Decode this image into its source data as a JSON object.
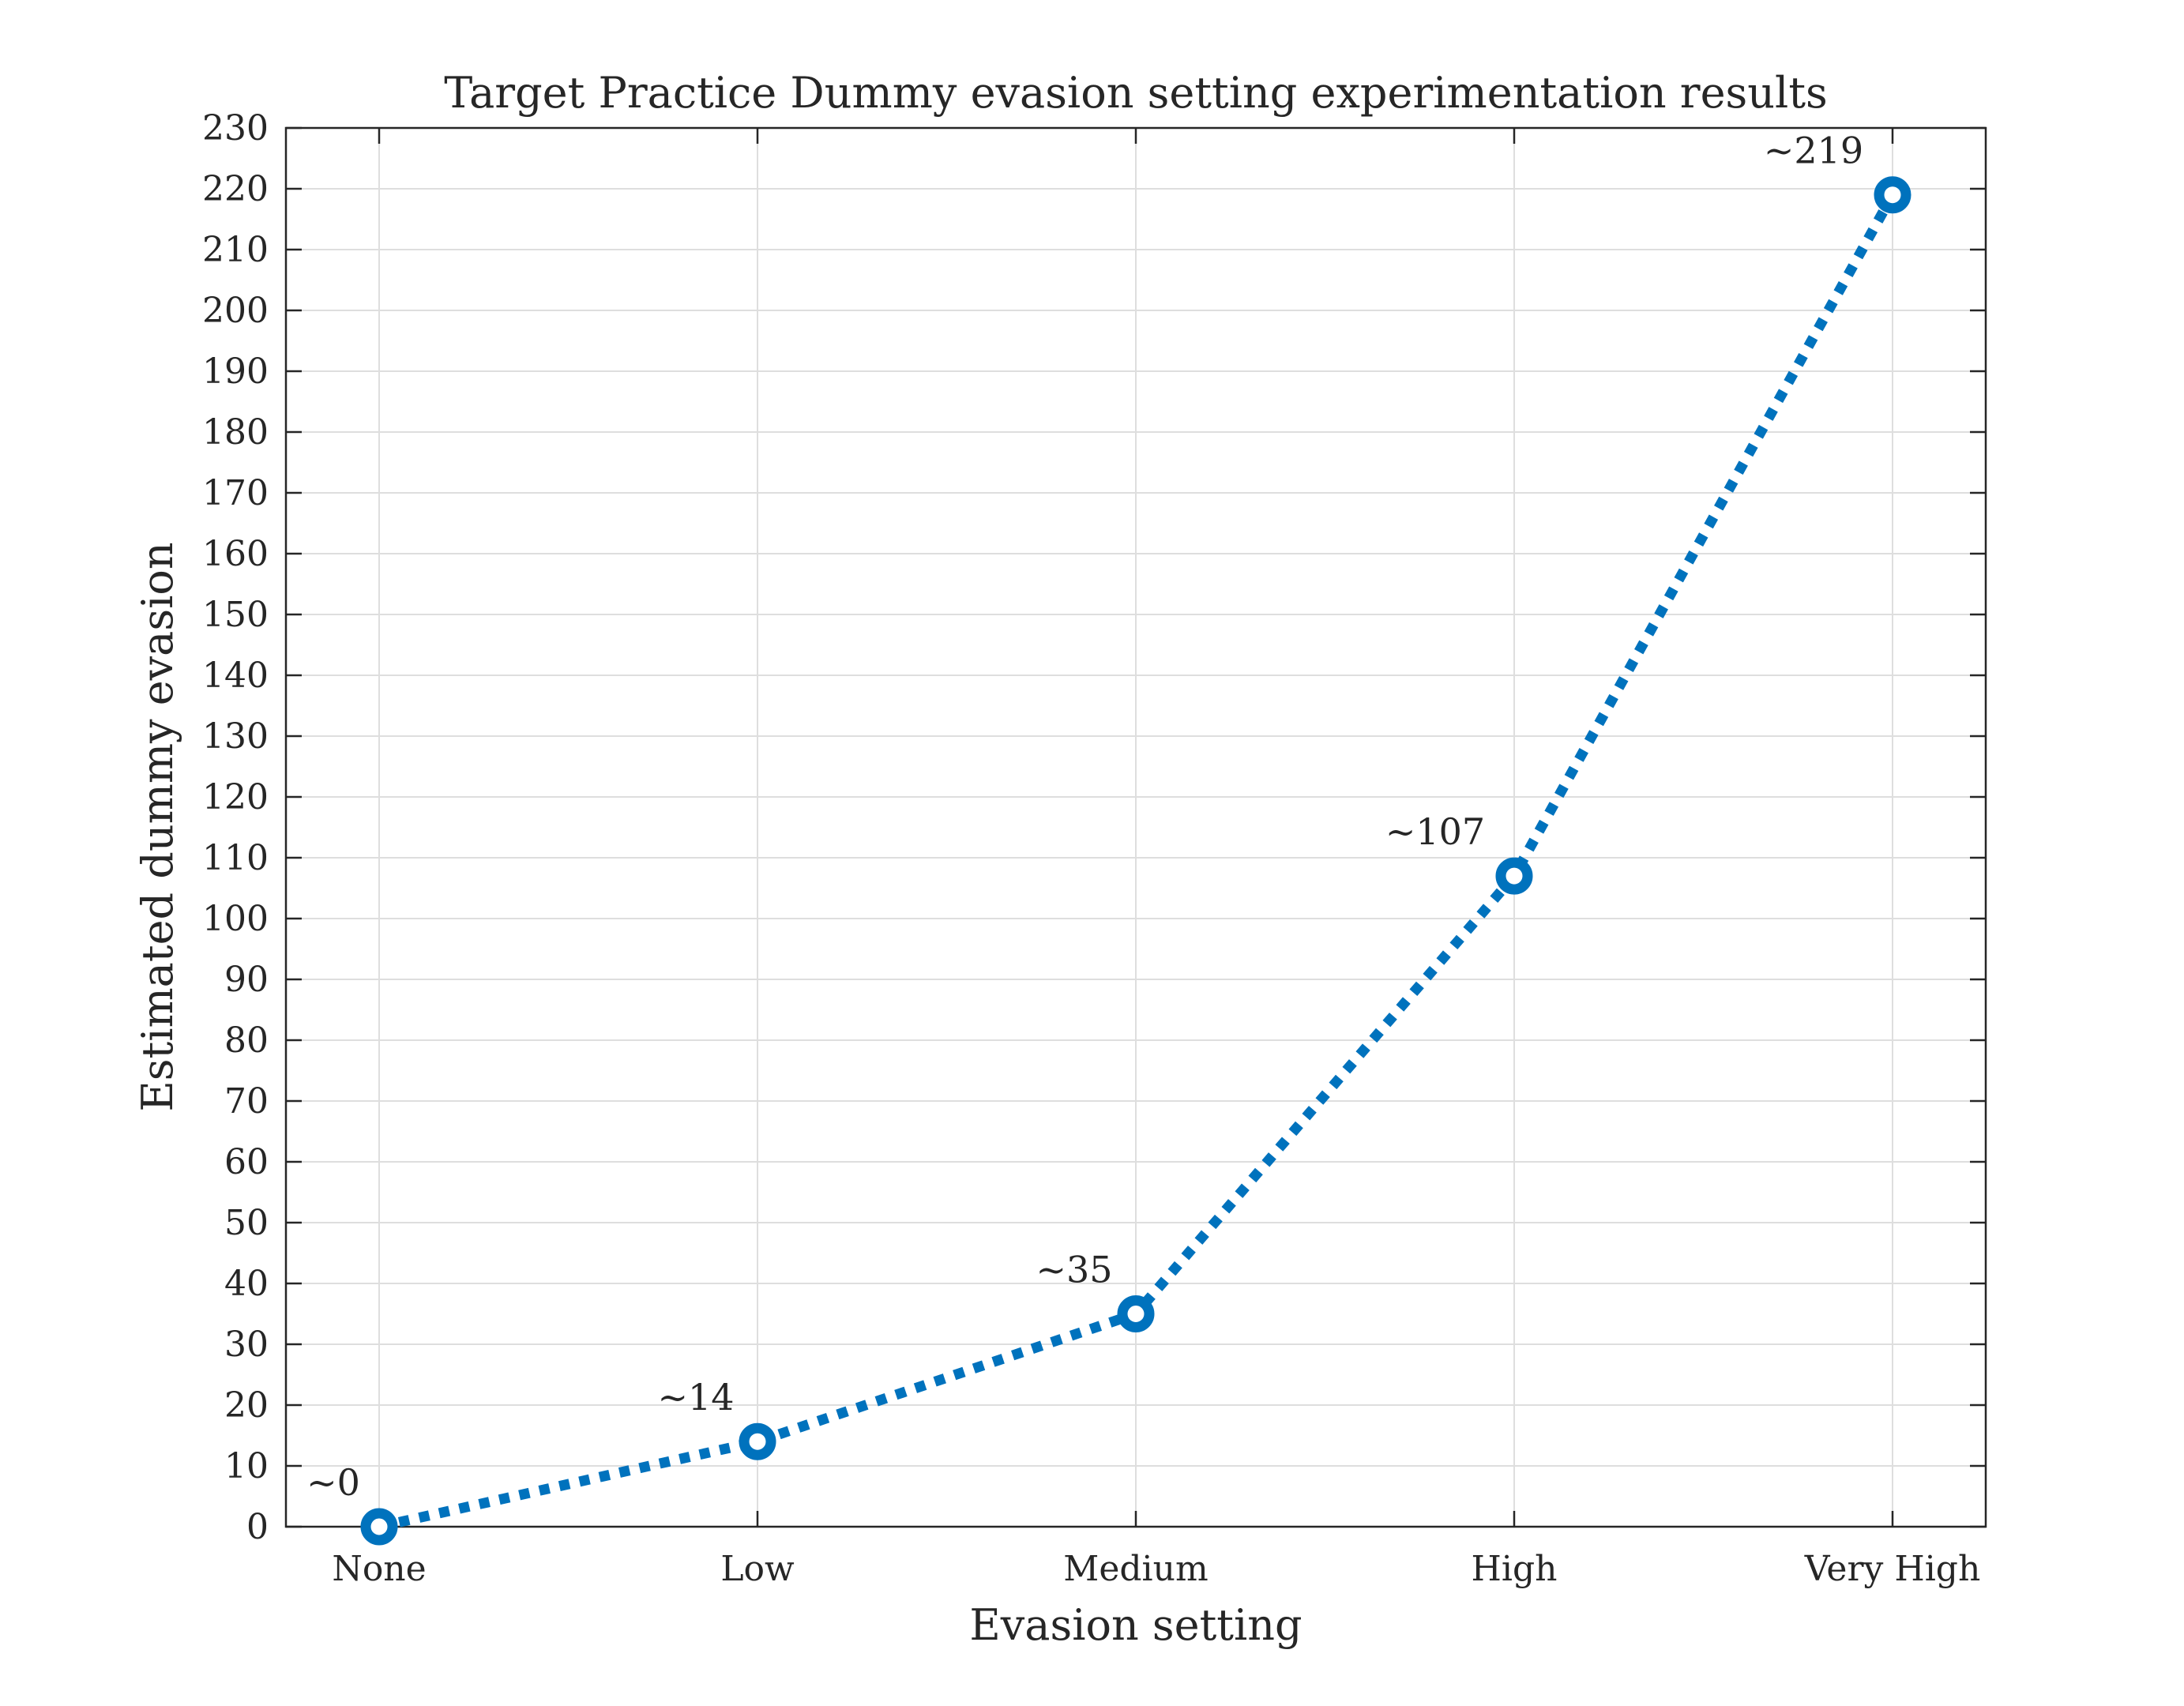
{
  "chart_data": {
    "type": "line",
    "title": "Target Practice Dummy evasion setting experimentation results",
    "xlabel": "Evasion setting",
    "ylabel": "Estimated dummy evasion",
    "categories": [
      "None",
      "Low",
      "Medium",
      "High",
      "Very High"
    ],
    "series": [
      {
        "values": [
          0,
          14,
          35,
          107,
          219
        ],
        "color": "#0072BD",
        "line_style": "dotted",
        "marker": "circle-open"
      }
    ],
    "data_labels": [
      "~0",
      "~14",
      "~35",
      "~107",
      "~219"
    ],
    "ylim": [
      0,
      230
    ],
    "yticks": [
      0,
      10,
      20,
      30,
      40,
      50,
      60,
      70,
      80,
      90,
      100,
      110,
      120,
      130,
      140,
      150,
      160,
      170,
      180,
      190,
      200,
      210,
      220,
      230
    ],
    "grid": true,
    "legend": "none"
  }
}
